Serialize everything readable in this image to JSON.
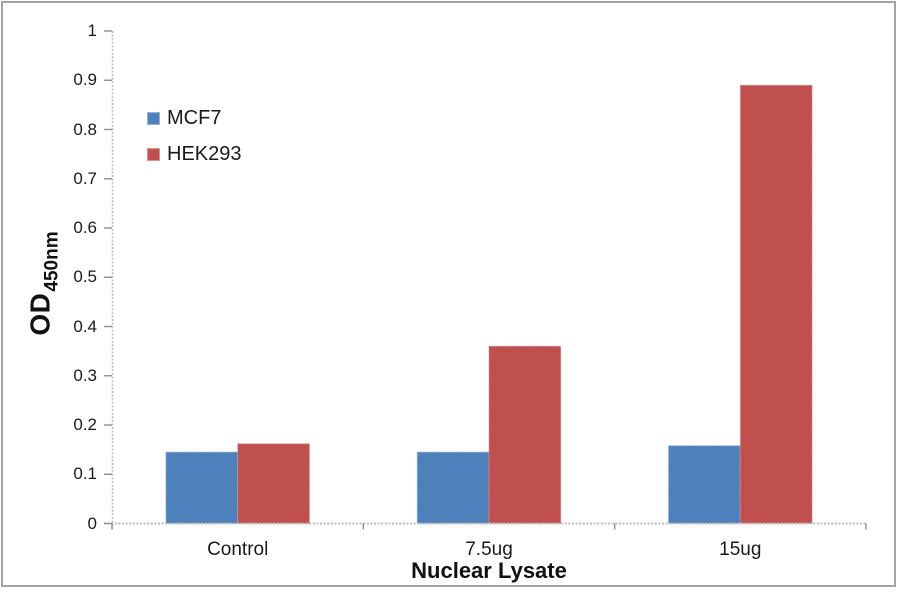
{
  "chart_data": {
    "type": "bar",
    "title": "",
    "categories": [
      "Control",
      "7.5ug",
      "15ug"
    ],
    "series": [
      {
        "name": "MCF7",
        "color": "#4E80BC",
        "border_color": "#95B3D7",
        "values": [
          0.145,
          0.145,
          0.158
        ]
      },
      {
        "name": "HEK293",
        "color": "#C0504D",
        "border_color": "#D99694",
        "values": [
          0.162,
          0.36,
          0.89
        ]
      }
    ],
    "xlabel": "Nuclear Lysate",
    "ylabel_main": "OD",
    "ylabel_sub": "450nm",
    "ylim": [
      0,
      1
    ],
    "ytick_step": 0.1,
    "ytick_labels": [
      "0",
      "0.1",
      "0.2",
      "0.3",
      "0.4",
      "0.5",
      "0.6",
      "0.7",
      "0.8",
      "0.9",
      "1"
    ],
    "legend_position": "upper-left-inside",
    "legend_entries": [
      "MCF7",
      "HEK293"
    ],
    "grid": false,
    "gap_width_percent": 150,
    "bar_orientation": "vertical"
  },
  "colors": {
    "axis_line": "#bdbdbd",
    "tick_mark": "#8f8f8f",
    "frame_border": "#a4a4a4",
    "text": "#1a1a1a",
    "background": "#ffffff"
  }
}
